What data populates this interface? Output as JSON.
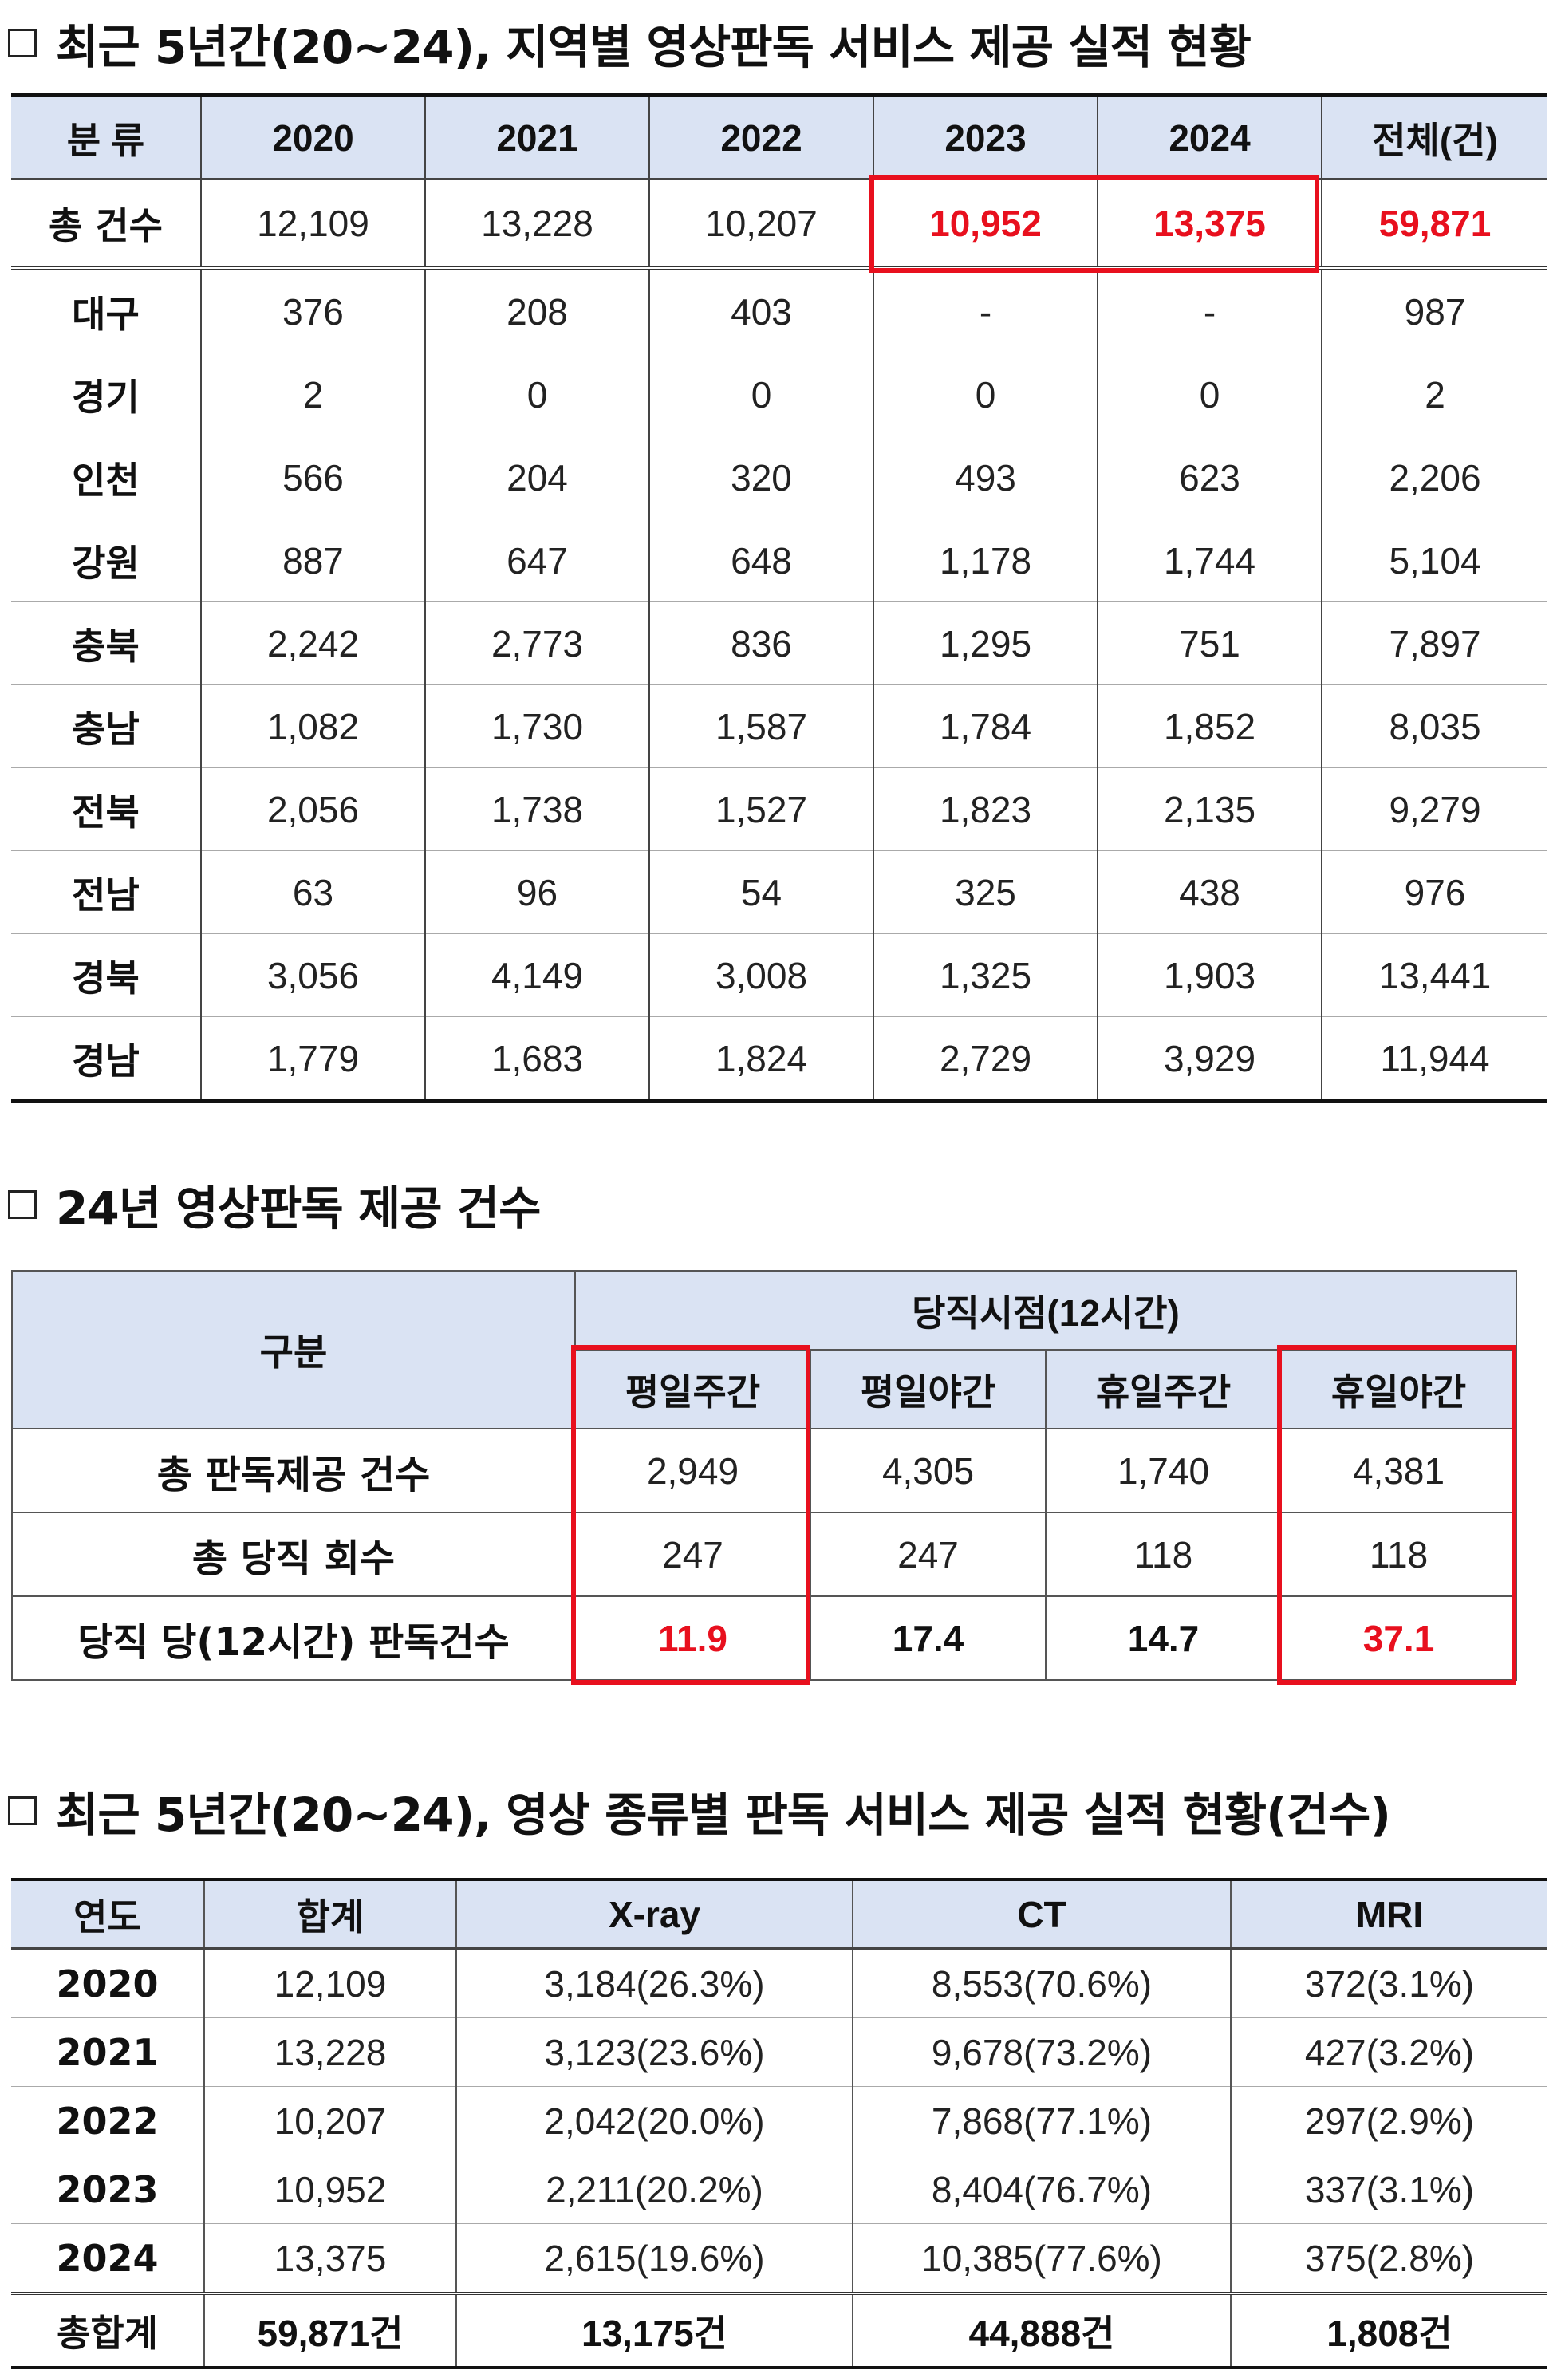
{
  "section1": {
    "title": "최근 5년간(20~24), 지역별 영상판독 서비스 제공 실적 현황",
    "table": {
      "headers": [
        "분 류",
        "2020",
        "2021",
        "2022",
        "2023",
        "2024",
        "전체(건)"
      ],
      "total_row": [
        "총 건수",
        "12,109",
        "13,228",
        "10,207",
        "10,952",
        "13,375",
        "59,871"
      ],
      "rows": [
        [
          "대구",
          "376",
          "208",
          "403",
          "-",
          "-",
          "987"
        ],
        [
          "경기",
          "2",
          "0",
          "0",
          "0",
          "0",
          "2"
        ],
        [
          "인천",
          "566",
          "204",
          "320",
          "493",
          "623",
          "2,206"
        ],
        [
          "강원",
          "887",
          "647",
          "648",
          "1,178",
          "1,744",
          "5,104"
        ],
        [
          "충북",
          "2,242",
          "2,773",
          "836",
          "1,295",
          "751",
          "7,897"
        ],
        [
          "충남",
          "1,082",
          "1,730",
          "1,587",
          "1,784",
          "1,852",
          "8,035"
        ],
        [
          "전북",
          "2,056",
          "1,738",
          "1,527",
          "1,823",
          "2,135",
          "9,279"
        ],
        [
          "전남",
          "63",
          "96",
          "54",
          "325",
          "438",
          "976"
        ],
        [
          "경북",
          "3,056",
          "4,149",
          "3,008",
          "1,325",
          "1,903",
          "13,441"
        ],
        [
          "경남",
          "1,779",
          "1,683",
          "1,824",
          "2,729",
          "3,929",
          "11,944"
        ]
      ]
    }
  },
  "section2": {
    "title": "24년 영상판독 제공 건수",
    "table": {
      "corner": "구분",
      "group_header": "당직시점(12시간)",
      "columns": [
        "평일주간",
        "평일야간",
        "휴일주간",
        "휴일야간"
      ],
      "rows": [
        {
          "label": "총 판독제공 건수",
          "values": [
            "2,949",
            "4,305",
            "1,740",
            "4,381"
          ]
        },
        {
          "label": "총 당직 회수",
          "values": [
            "247",
            "247",
            "118",
            "118"
          ]
        },
        {
          "label": "당직 당(12시간) 판독건수",
          "values": [
            "11.9",
            "17.4",
            "14.7",
            "37.1"
          ]
        }
      ]
    }
  },
  "section3": {
    "title": "최근 5년간(20~24), 영상 종류별 판독 서비스 제공 실적 현황(건수)",
    "table": {
      "headers": [
        "연도",
        "합계",
        "X-ray",
        "CT",
        "MRI"
      ],
      "rows": [
        [
          "2020",
          "12,109",
          "3,184(26.3%)",
          "8,553(70.6%)",
          "372(3.1%)"
        ],
        [
          "2021",
          "13,228",
          "3,123(23.6%)",
          "9,678(73.2%)",
          "427(3.2%)"
        ],
        [
          "2022",
          "10,207",
          "2,042(20.0%)",
          "7,868(77.1%)",
          "297(2.9%)"
        ],
        [
          "2023",
          "10,952",
          "2,211(20.2%)",
          "8,404(76.7%)",
          "337(3.1%)"
        ],
        [
          "2024",
          "13,375",
          "2,615(19.6%)",
          "10,385(77.6%)",
          "375(2.8%)"
        ]
      ],
      "sum_row": [
        "총합계",
        "59,871건",
        "13,175건",
        "44,888건",
        "1,808건"
      ]
    }
  },
  "colors": {
    "header_bg": "#dae3f3",
    "highlight": "#e8101e"
  }
}
